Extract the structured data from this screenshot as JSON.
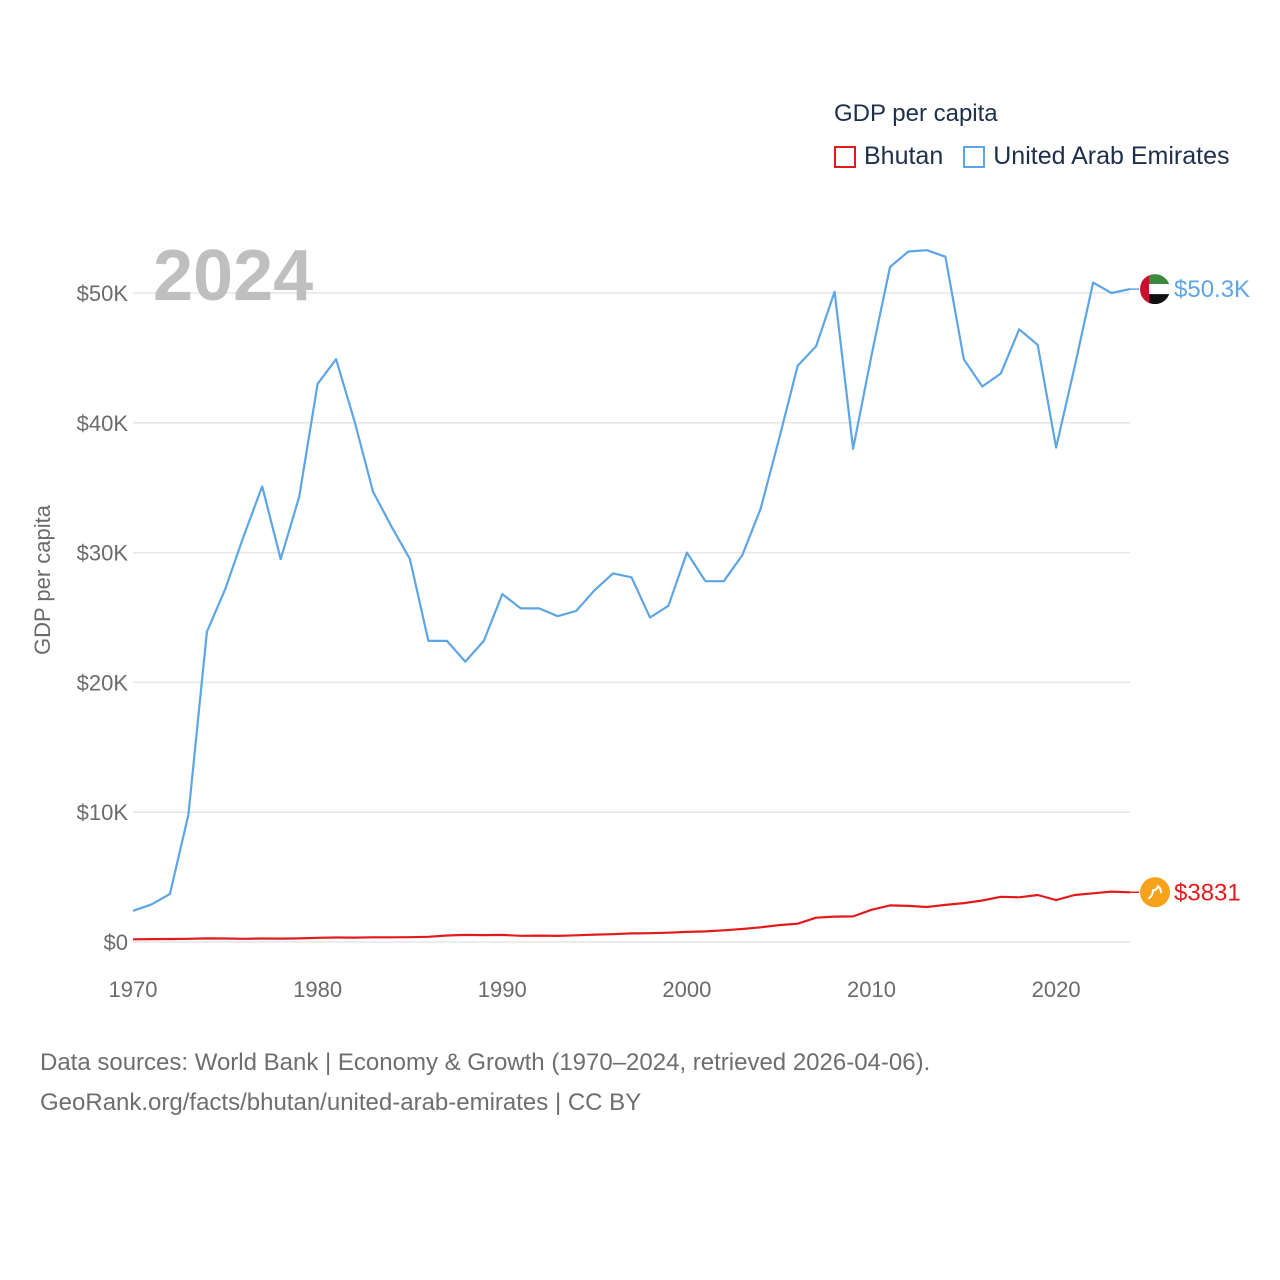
{
  "legend": {
    "title": "GDP per capita",
    "items": [
      {
        "name": "Bhutan",
        "color": "#e31a1c"
      },
      {
        "name": "United Arab Emirates",
        "color": "#5da5e6"
      }
    ]
  },
  "footer": {
    "line1": "Data sources: World Bank | Economy & Growth (1970–2024, retrieved 2026-04-06).",
    "line2": "GeoRank.org/facts/bhutan/united-arab-emirates | CC BY"
  },
  "chart_data": {
    "type": "line",
    "title": "GDP per capita",
    "year_label": "2024",
    "ylabel": "GDP per capita",
    "xlabel": "",
    "xlim": [
      1970,
      2024
    ],
    "ylim": [
      0,
      55000
    ],
    "grid": true,
    "legend_position": "top-right",
    "y_ticks": [
      {
        "value": 0,
        "label": "$0"
      },
      {
        "value": 10000,
        "label": "$10K"
      },
      {
        "value": 20000,
        "label": "$20K"
      },
      {
        "value": 30000,
        "label": "$30K"
      },
      {
        "value": 40000,
        "label": "$40K"
      },
      {
        "value": 50000,
        "label": "$50K"
      }
    ],
    "x_ticks": [
      {
        "value": 1970,
        "label": "1970"
      },
      {
        "value": 1980,
        "label": "1980"
      },
      {
        "value": 1990,
        "label": "1990"
      },
      {
        "value": 2000,
        "label": "2000"
      },
      {
        "value": 2010,
        "label": "2010"
      },
      {
        "value": 2020,
        "label": "2020"
      }
    ],
    "x": [
      1970,
      1971,
      1972,
      1973,
      1974,
      1975,
      1976,
      1977,
      1978,
      1979,
      1980,
      1981,
      1982,
      1983,
      1984,
      1985,
      1986,
      1987,
      1988,
      1989,
      1990,
      1991,
      1992,
      1993,
      1994,
      1995,
      1996,
      1997,
      1998,
      1999,
      2000,
      2001,
      2002,
      2003,
      2004,
      2005,
      2006,
      2007,
      2008,
      2009,
      2010,
      2011,
      2012,
      2013,
      2014,
      2015,
      2016,
      2017,
      2018,
      2019,
      2020,
      2021,
      2022,
      2023,
      2024
    ],
    "series": [
      {
        "name": "United Arab Emirates",
        "color": "#5da5e6",
        "end_label": "$50.3K",
        "flag_icon": "uae-flag-icon",
        "values": [
          2400,
          2900,
          3700,
          9800,
          23900,
          27200,
          31300,
          35100,
          29500,
          34300,
          43000,
          44900,
          40100,
          34700,
          32000,
          29500,
          23200,
          23200,
          21600,
          23200,
          26800,
          25700,
          25700,
          25100,
          25500,
          27100,
          28400,
          28100,
          25000,
          25900,
          30000,
          27800,
          27800,
          29800,
          33400,
          38800,
          44400,
          45900,
          50100,
          38000,
          45200,
          52000,
          53200,
          53300,
          52800,
          44900,
          42800,
          43800,
          47200,
          46000,
          38100,
          44300,
          50800,
          50000,
          50300
        ]
      },
      {
        "name": "Bhutan",
        "color": "#e31a1c",
        "end_label": "$3831",
        "flag_icon": "bhutan-flag-icon",
        "values": [
          210,
          220,
          230,
          250,
          280,
          270,
          250,
          270,
          260,
          280,
          320,
          350,
          340,
          360,
          360,
          370,
          400,
          500,
          550,
          530,
          550,
          480,
          490,
          470,
          520,
          570,
          600,
          660,
          680,
          720,
          780,
          820,
          900,
          1000,
          1130,
          1300,
          1410,
          1870,
          1960,
          1970,
          2480,
          2820,
          2780,
          2700,
          2860,
          3000,
          3200,
          3480,
          3440,
          3620,
          3230,
          3620,
          3750,
          3880,
          3831
        ]
      }
    ]
  }
}
